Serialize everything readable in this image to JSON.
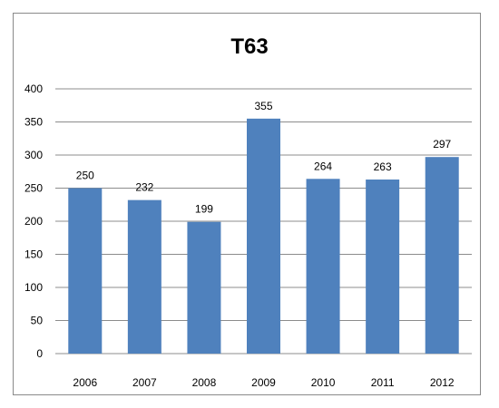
{
  "chart_data": {
    "type": "bar",
    "title": "T63",
    "xlabel": "",
    "ylabel": "",
    "categories": [
      "2006",
      "2007",
      "2008",
      "2009",
      "2010",
      "2011",
      "2012"
    ],
    "values": [
      250,
      232,
      199,
      355,
      264,
      263,
      297
    ],
    "ylim": [
      0,
      400
    ],
    "yticks": [
      0,
      50,
      100,
      150,
      200,
      250,
      300,
      350,
      400
    ],
    "grid": true,
    "legend": "none",
    "bar_color": "#4f81bd",
    "grid_color": "#8c8c8c"
  }
}
